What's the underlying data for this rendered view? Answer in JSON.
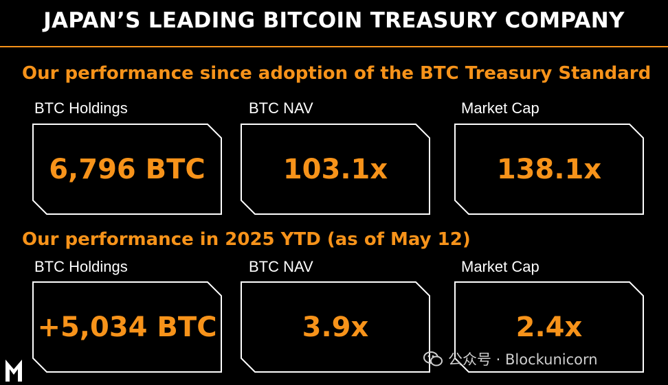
{
  "header": {
    "title": "JAPAN’S LEADING BITCOIN TREASURY COMPANY"
  },
  "sections": [
    {
      "title": "Our performance since adoption of the BTC Treasury Standard",
      "metrics": [
        {
          "label": "BTC Holdings",
          "value": "6,796 BTC"
        },
        {
          "label": "BTC NAV",
          "value": "103.1x"
        },
        {
          "label": "Market Cap",
          "value": "138.1x"
        }
      ]
    },
    {
      "title": "Our performance in 2025 YTD (as of May 12)",
      "metrics": [
        {
          "label": "BTC Holdings",
          "value": "+5,034 BTC"
        },
        {
          "label": "BTC NAV",
          "value": "3.9x"
        },
        {
          "label": "Market Cap",
          "value": "2.4x"
        }
      ]
    }
  ],
  "watermark": {
    "text": "公众号 · Blockunicorn",
    "icon": "wechat-icon"
  },
  "logo": {
    "letter": "M",
    "icon": "metaplanet-logo"
  },
  "colors": {
    "accent": "#f7931a",
    "background": "#000000",
    "text": "#ffffff",
    "card_border": "#ffffff"
  }
}
